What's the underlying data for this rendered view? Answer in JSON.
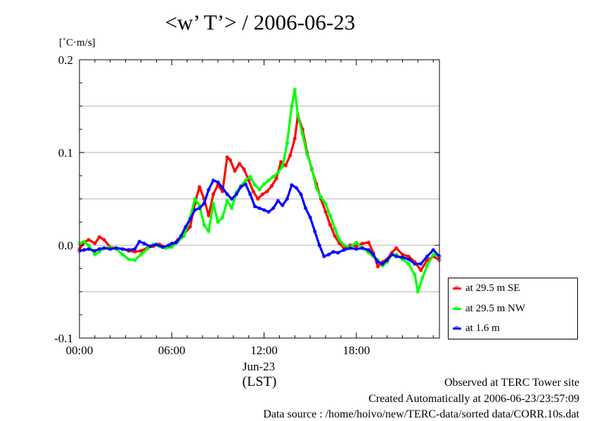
{
  "chart_data": {
    "type": "line",
    "title": "<w’ T’> / 2006-06-23",
    "ylabel": "[˚C·m/s]",
    "xlabel": "(LST)",
    "date_label": "Jun-23",
    "xlim": [
      0,
      23.4
    ],
    "ylim": [
      -0.1,
      0.2
    ],
    "x_ticks": [
      {
        "value": 0,
        "label": "00:00"
      },
      {
        "value": 6,
        "label": "06:00"
      },
      {
        "value": 12,
        "label": "12:00"
      },
      {
        "value": 18,
        "label": "18:00"
      }
    ],
    "y_ticks": [
      {
        "value": -0.1,
        "label": "-0.1"
      },
      {
        "value": 0.0,
        "label": "0.0"
      },
      {
        "value": 0.1,
        "label": "0.1"
      },
      {
        "value": 0.2,
        "label": "0.2"
      }
    ],
    "grid": "horizontal",
    "legend_position": "bottom-right",
    "series": [
      {
        "name": "at 29.5 m SE",
        "color": "#ff0000",
        "points": [
          [
            0,
            -0.004
          ],
          [
            0.3,
            0.003
          ],
          [
            0.6,
            0.006
          ],
          [
            1,
            0.002
          ],
          [
            1.3,
            0.009
          ],
          [
            1.6,
            0.006
          ],
          [
            2,
            -0.002
          ],
          [
            2.4,
            -0.003
          ],
          [
            2.8,
            -0.004
          ],
          [
            3.2,
            -0.006
          ],
          [
            3.6,
            -0.007
          ],
          [
            4,
            -0.006
          ],
          [
            4.4,
            -0.003
          ],
          [
            4.8,
            -0.001
          ],
          [
            5.2,
            0.001
          ],
          [
            5.6,
            -0.002
          ],
          [
            6,
            0.0
          ],
          [
            6.4,
            0.006
          ],
          [
            6.8,
            0.012
          ],
          [
            7.2,
            0.02
          ],
          [
            7.5,
            0.045
          ],
          [
            7.8,
            0.063
          ],
          [
            8.1,
            0.05
          ],
          [
            8.4,
            0.032
          ],
          [
            8.7,
            0.055
          ],
          [
            9,
            0.065
          ],
          [
            9.3,
            0.058
          ],
          [
            9.6,
            0.095
          ],
          [
            9.8,
            0.092
          ],
          [
            10.1,
            0.08
          ],
          [
            10.4,
            0.088
          ],
          [
            10.7,
            0.082
          ],
          [
            11,
            0.07
          ],
          [
            11.3,
            0.058
          ],
          [
            11.6,
            0.05
          ],
          [
            11.9,
            0.055
          ],
          [
            12.2,
            0.058
          ],
          [
            12.5,
            0.064
          ],
          [
            12.8,
            0.072
          ],
          [
            13.1,
            0.09
          ],
          [
            13.4,
            0.086
          ],
          [
            13.7,
            0.097
          ],
          [
            14,
            0.115
          ],
          [
            14.2,
            0.14
          ],
          [
            14.5,
            0.125
          ],
          [
            14.8,
            0.1
          ],
          [
            15.1,
            0.082
          ],
          [
            15.4,
            0.066
          ],
          [
            15.7,
            0.05
          ],
          [
            16,
            0.036
          ],
          [
            16.3,
            0.022
          ],
          [
            16.6,
            0.01
          ],
          [
            16.9,
            0.002
          ],
          [
            17.2,
            -0.003
          ],
          [
            17.6,
            0.0
          ],
          [
            18,
            -0.001
          ],
          [
            18.4,
            0.002
          ],
          [
            18.8,
            0.003
          ],
          [
            19.1,
            -0.008
          ],
          [
            19.4,
            -0.023
          ],
          [
            19.7,
            -0.018
          ],
          [
            20,
            -0.015
          ],
          [
            20.3,
            -0.008
          ],
          [
            20.6,
            -0.003
          ],
          [
            21,
            -0.01
          ],
          [
            21.4,
            -0.012
          ],
          [
            21.8,
            -0.018
          ],
          [
            22.2,
            -0.027
          ],
          [
            22.6,
            -0.016
          ],
          [
            23,
            -0.012
          ],
          [
            23.4,
            -0.016
          ]
        ]
      },
      {
        "name": "at 29.5 m NW",
        "color": "#00ff00",
        "points": [
          [
            0,
            0.002
          ],
          [
            0.3,
            0.004
          ],
          [
            0.6,
            0.0
          ],
          [
            1,
            -0.01
          ],
          [
            1.3,
            -0.007
          ],
          [
            1.6,
            -0.003
          ],
          [
            2,
            -0.002
          ],
          [
            2.4,
            -0.004
          ],
          [
            2.8,
            -0.01
          ],
          [
            3.2,
            -0.015
          ],
          [
            3.6,
            -0.016
          ],
          [
            4,
            -0.01
          ],
          [
            4.4,
            -0.004
          ],
          [
            4.8,
            0.001
          ],
          [
            5.2,
            -0.001
          ],
          [
            5.6,
            -0.003
          ],
          [
            6,
            -0.002
          ],
          [
            6.4,
            0.004
          ],
          [
            6.8,
            0.01
          ],
          [
            7.2,
            0.03
          ],
          [
            7.5,
            0.05
          ],
          [
            7.8,
            0.043
          ],
          [
            8.1,
            0.022
          ],
          [
            8.4,
            0.015
          ],
          [
            8.7,
            0.045
          ],
          [
            9,
            0.025
          ],
          [
            9.3,
            0.03
          ],
          [
            9.6,
            0.048
          ],
          [
            9.9,
            0.04
          ],
          [
            10.2,
            0.057
          ],
          [
            10.5,
            0.064
          ],
          [
            10.8,
            0.07
          ],
          [
            11.1,
            0.074
          ],
          [
            11.4,
            0.065
          ],
          [
            11.7,
            0.06
          ],
          [
            12,
            0.066
          ],
          [
            12.3,
            0.07
          ],
          [
            12.6,
            0.074
          ],
          [
            12.9,
            0.078
          ],
          [
            13.2,
            0.085
          ],
          [
            13.5,
            0.11
          ],
          [
            13.8,
            0.15
          ],
          [
            14,
            0.168
          ],
          [
            14.2,
            0.14
          ],
          [
            14.5,
            0.12
          ],
          [
            14.8,
            0.098
          ],
          [
            15.1,
            0.083
          ],
          [
            15.4,
            0.062
          ],
          [
            15.7,
            0.052
          ],
          [
            16,
            0.045
          ],
          [
            16.3,
            0.032
          ],
          [
            16.6,
            0.018
          ],
          [
            16.9,
            0.006
          ],
          [
            17.2,
            0.0
          ],
          [
            17.6,
            -0.002
          ],
          [
            18,
            0.003
          ],
          [
            18.4,
            -0.003
          ],
          [
            18.8,
            -0.008
          ],
          [
            19.1,
            -0.012
          ],
          [
            19.4,
            -0.016
          ],
          [
            19.7,
            -0.022
          ],
          [
            20,
            -0.018
          ],
          [
            20.3,
            -0.01
          ],
          [
            20.6,
            -0.01
          ],
          [
            21,
            -0.015
          ],
          [
            21.4,
            -0.02
          ],
          [
            21.8,
            -0.032
          ],
          [
            22,
            -0.05
          ],
          [
            22.3,
            -0.035
          ],
          [
            22.6,
            -0.022
          ],
          [
            23,
            -0.01
          ],
          [
            23.4,
            -0.012
          ]
        ]
      },
      {
        "name": "at 1.6 m",
        "color": "#0000ff",
        "points": [
          [
            0,
            -0.006
          ],
          [
            0.3,
            -0.005
          ],
          [
            0.6,
            -0.004
          ],
          [
            1,
            -0.006
          ],
          [
            1.3,
            -0.004
          ],
          [
            1.6,
            -0.003
          ],
          [
            2,
            -0.004
          ],
          [
            2.4,
            -0.003
          ],
          [
            2.8,
            -0.004
          ],
          [
            3.2,
            -0.005
          ],
          [
            3.6,
            -0.004
          ],
          [
            3.9,
            0.004
          ],
          [
            4.2,
            0.002
          ],
          [
            4.6,
            -0.001
          ],
          [
            5,
            0.001
          ],
          [
            5.4,
            -0.002
          ],
          [
            5.8,
            0.0
          ],
          [
            6,
            0.002
          ],
          [
            6.3,
            0.003
          ],
          [
            6.6,
            0.01
          ],
          [
            6.9,
            0.02
          ],
          [
            7.2,
            0.028
          ],
          [
            7.5,
            0.038
          ],
          [
            7.8,
            0.04
          ],
          [
            8.1,
            0.045
          ],
          [
            8.4,
            0.06
          ],
          [
            8.7,
            0.07
          ],
          [
            9,
            0.068
          ],
          [
            9.3,
            0.062
          ],
          [
            9.6,
            0.055
          ],
          [
            9.9,
            0.05
          ],
          [
            10.2,
            0.055
          ],
          [
            10.5,
            0.063
          ],
          [
            10.8,
            0.066
          ],
          [
            11.1,
            0.055
          ],
          [
            11.4,
            0.042
          ],
          [
            11.7,
            0.04
          ],
          [
            12,
            0.038
          ],
          [
            12.3,
            0.036
          ],
          [
            12.6,
            0.04
          ],
          [
            12.9,
            0.048
          ],
          [
            13.2,
            0.043
          ],
          [
            13.5,
            0.05
          ],
          [
            13.8,
            0.065
          ],
          [
            14.1,
            0.062
          ],
          [
            14.4,
            0.055
          ],
          [
            14.7,
            0.04
          ],
          [
            15,
            0.03
          ],
          [
            15.3,
            0.015
          ],
          [
            15.6,
            0.0
          ],
          [
            15.9,
            -0.012
          ],
          [
            16.2,
            -0.01
          ],
          [
            16.5,
            -0.007
          ],
          [
            16.8,
            -0.008
          ],
          [
            17.2,
            -0.005
          ],
          [
            17.6,
            -0.003
          ],
          [
            18,
            -0.004
          ],
          [
            18.4,
            -0.003
          ],
          [
            18.8,
            -0.005
          ],
          [
            19.1,
            -0.01
          ],
          [
            19.4,
            -0.018
          ],
          [
            19.7,
            -0.02
          ],
          [
            20,
            -0.016
          ],
          [
            20.3,
            -0.01
          ],
          [
            20.6,
            -0.012
          ],
          [
            21,
            -0.013
          ],
          [
            21.4,
            -0.015
          ],
          [
            21.8,
            -0.02
          ],
          [
            22.2,
            -0.02
          ],
          [
            22.6,
            -0.012
          ],
          [
            23,
            -0.005
          ],
          [
            23.4,
            -0.012
          ]
        ]
      }
    ]
  },
  "footer": {
    "site": "Observed at TERC Tower site",
    "created": "Created Automatically at 2006-06-23/23:57:09",
    "source": "Data source : /home/hoivo/new/TERC-data/sorted  data/CORR.10s.dat"
  }
}
